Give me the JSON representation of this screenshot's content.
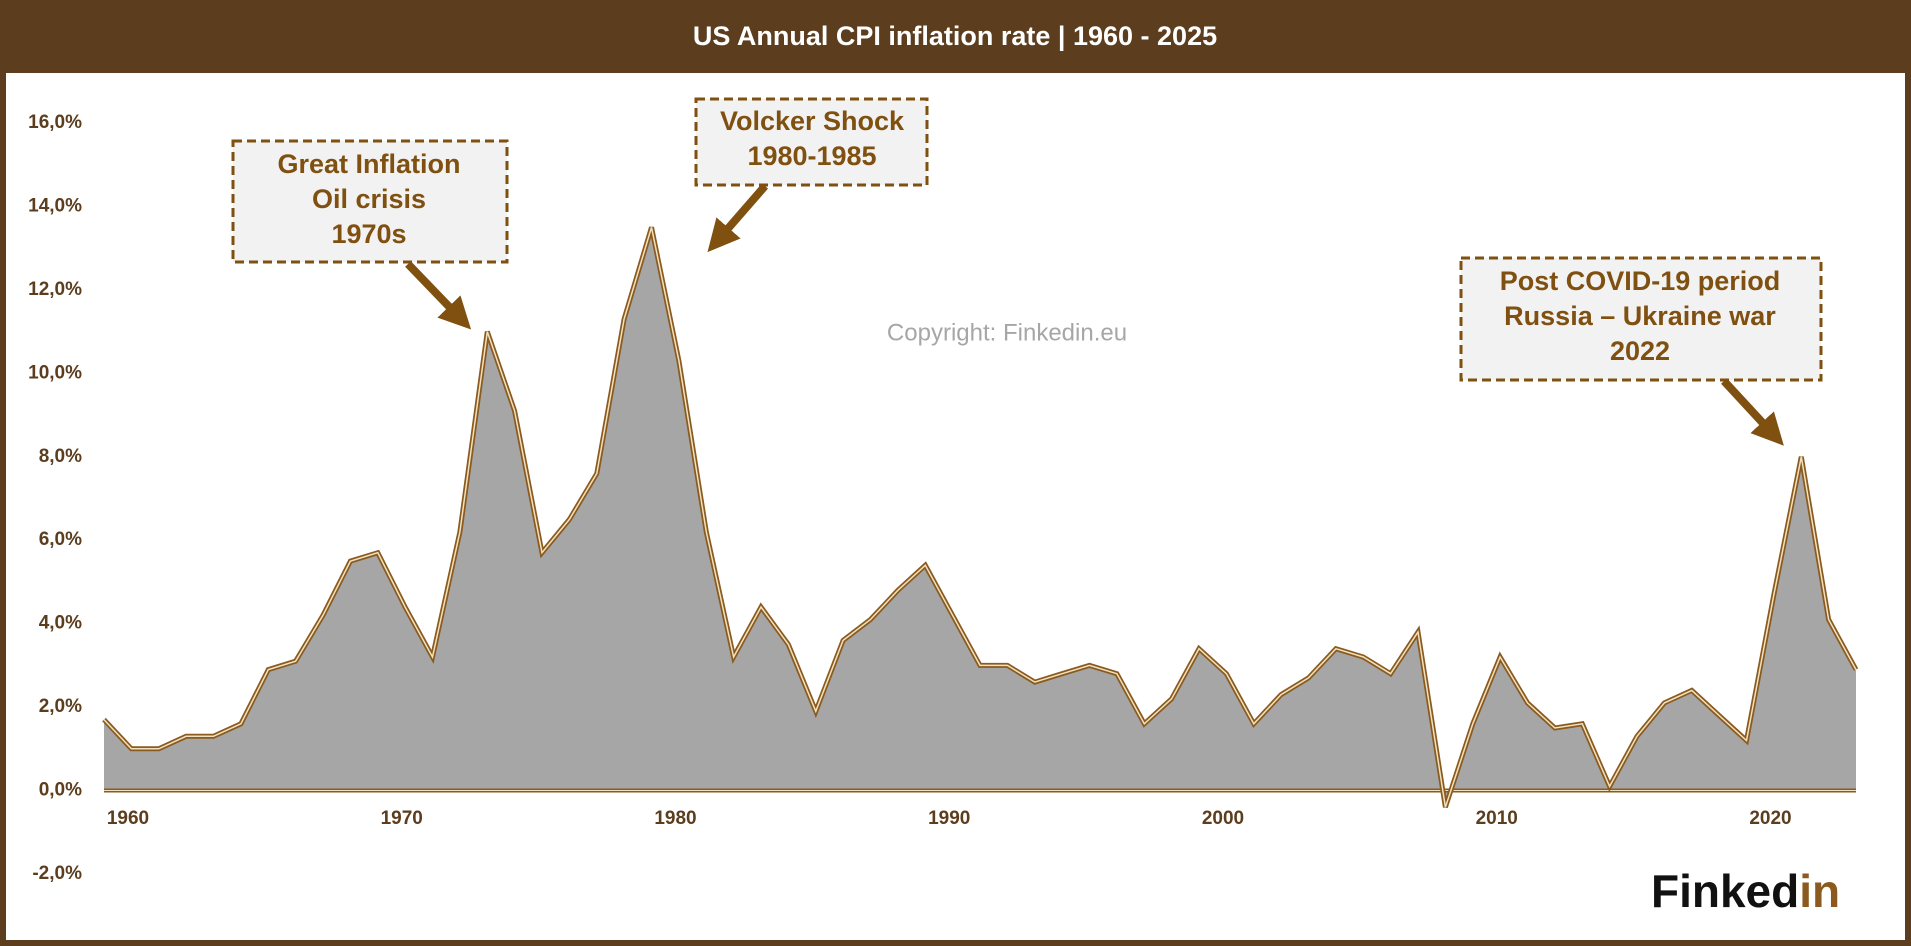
{
  "chart_data": {
    "type": "area",
    "title": "US Annual CPI inflation rate | 1960 - 2025",
    "x": [
      1960,
      1961,
      1962,
      1963,
      1964,
      1965,
      1966,
      1967,
      1968,
      1969,
      1970,
      1971,
      1972,
      1973,
      1974,
      1975,
      1976,
      1977,
      1978,
      1979,
      1980,
      1981,
      1982,
      1983,
      1984,
      1985,
      1986,
      1987,
      1988,
      1989,
      1990,
      1991,
      1992,
      1993,
      1994,
      1995,
      1996,
      1997,
      1998,
      1999,
      2000,
      2001,
      2002,
      2003,
      2004,
      2005,
      2006,
      2007,
      2008,
      2009,
      2010,
      2011,
      2012,
      2013,
      2014,
      2015,
      2016,
      2017,
      2018,
      2019,
      2020,
      2021,
      2022,
      2023,
      2024
    ],
    "values": [
      1.7,
      1.0,
      1.0,
      1.3,
      1.3,
      1.6,
      2.9,
      3.1,
      4.2,
      5.5,
      5.7,
      4.4,
      3.2,
      6.2,
      11.0,
      9.1,
      5.7,
      6.5,
      7.6,
      11.3,
      13.5,
      10.3,
      6.2,
      3.2,
      4.4,
      3.5,
      1.9,
      3.6,
      4.1,
      4.8,
      5.4,
      4.2,
      3.0,
      3.0,
      2.6,
      2.8,
      3.0,
      2.8,
      1.6,
      2.2,
      3.4,
      2.8,
      1.6,
      2.3,
      2.7,
      3.4,
      3.2,
      2.8,
      3.8,
      -0.4,
      1.6,
      3.2,
      2.1,
      1.5,
      1.6,
      0.1,
      1.3,
      2.1,
      2.4,
      1.8,
      1.2,
      4.7,
      8.0,
      4.1,
      2.9
    ],
    "color": "#a6a6a6",
    "line_color": "#8b5a1e",
    "xlim": [
      1960,
      2024
    ],
    "xticks": [
      1960,
      1970,
      1980,
      1990,
      2000,
      2010,
      2020
    ],
    "ylim": [
      -2,
      16
    ],
    "yticks": [
      {
        "value": -2,
        "label": "-2,0%"
      },
      {
        "value": 0,
        "label": "0,0%"
      },
      {
        "value": 2,
        "label": "2,0%"
      },
      {
        "value": 4,
        "label": "4,0%"
      },
      {
        "value": 6,
        "label": "6,0%"
      },
      {
        "value": 8,
        "label": "8,0%"
      },
      {
        "value": 10,
        "label": "10,0%"
      },
      {
        "value": 12,
        "label": "12,0%"
      },
      {
        "value": 14,
        "label": "14,0%"
      },
      {
        "value": 16,
        "label": "16,0%"
      }
    ],
    "grid": false,
    "annotations": [
      {
        "lines": [
          "Great Inflation",
          "Oil crisis",
          "1970s"
        ]
      },
      {
        "lines": [
          "Volcker Shock",
          "1980-1985"
        ]
      },
      {
        "lines": [
          "Post COVID-19 period",
          "Russia – Ukraine war",
          "2022"
        ]
      }
    ],
    "watermark": "Copyright: Finkedin.eu",
    "logo": {
      "main": "Finked",
      "accent": "in"
    }
  }
}
